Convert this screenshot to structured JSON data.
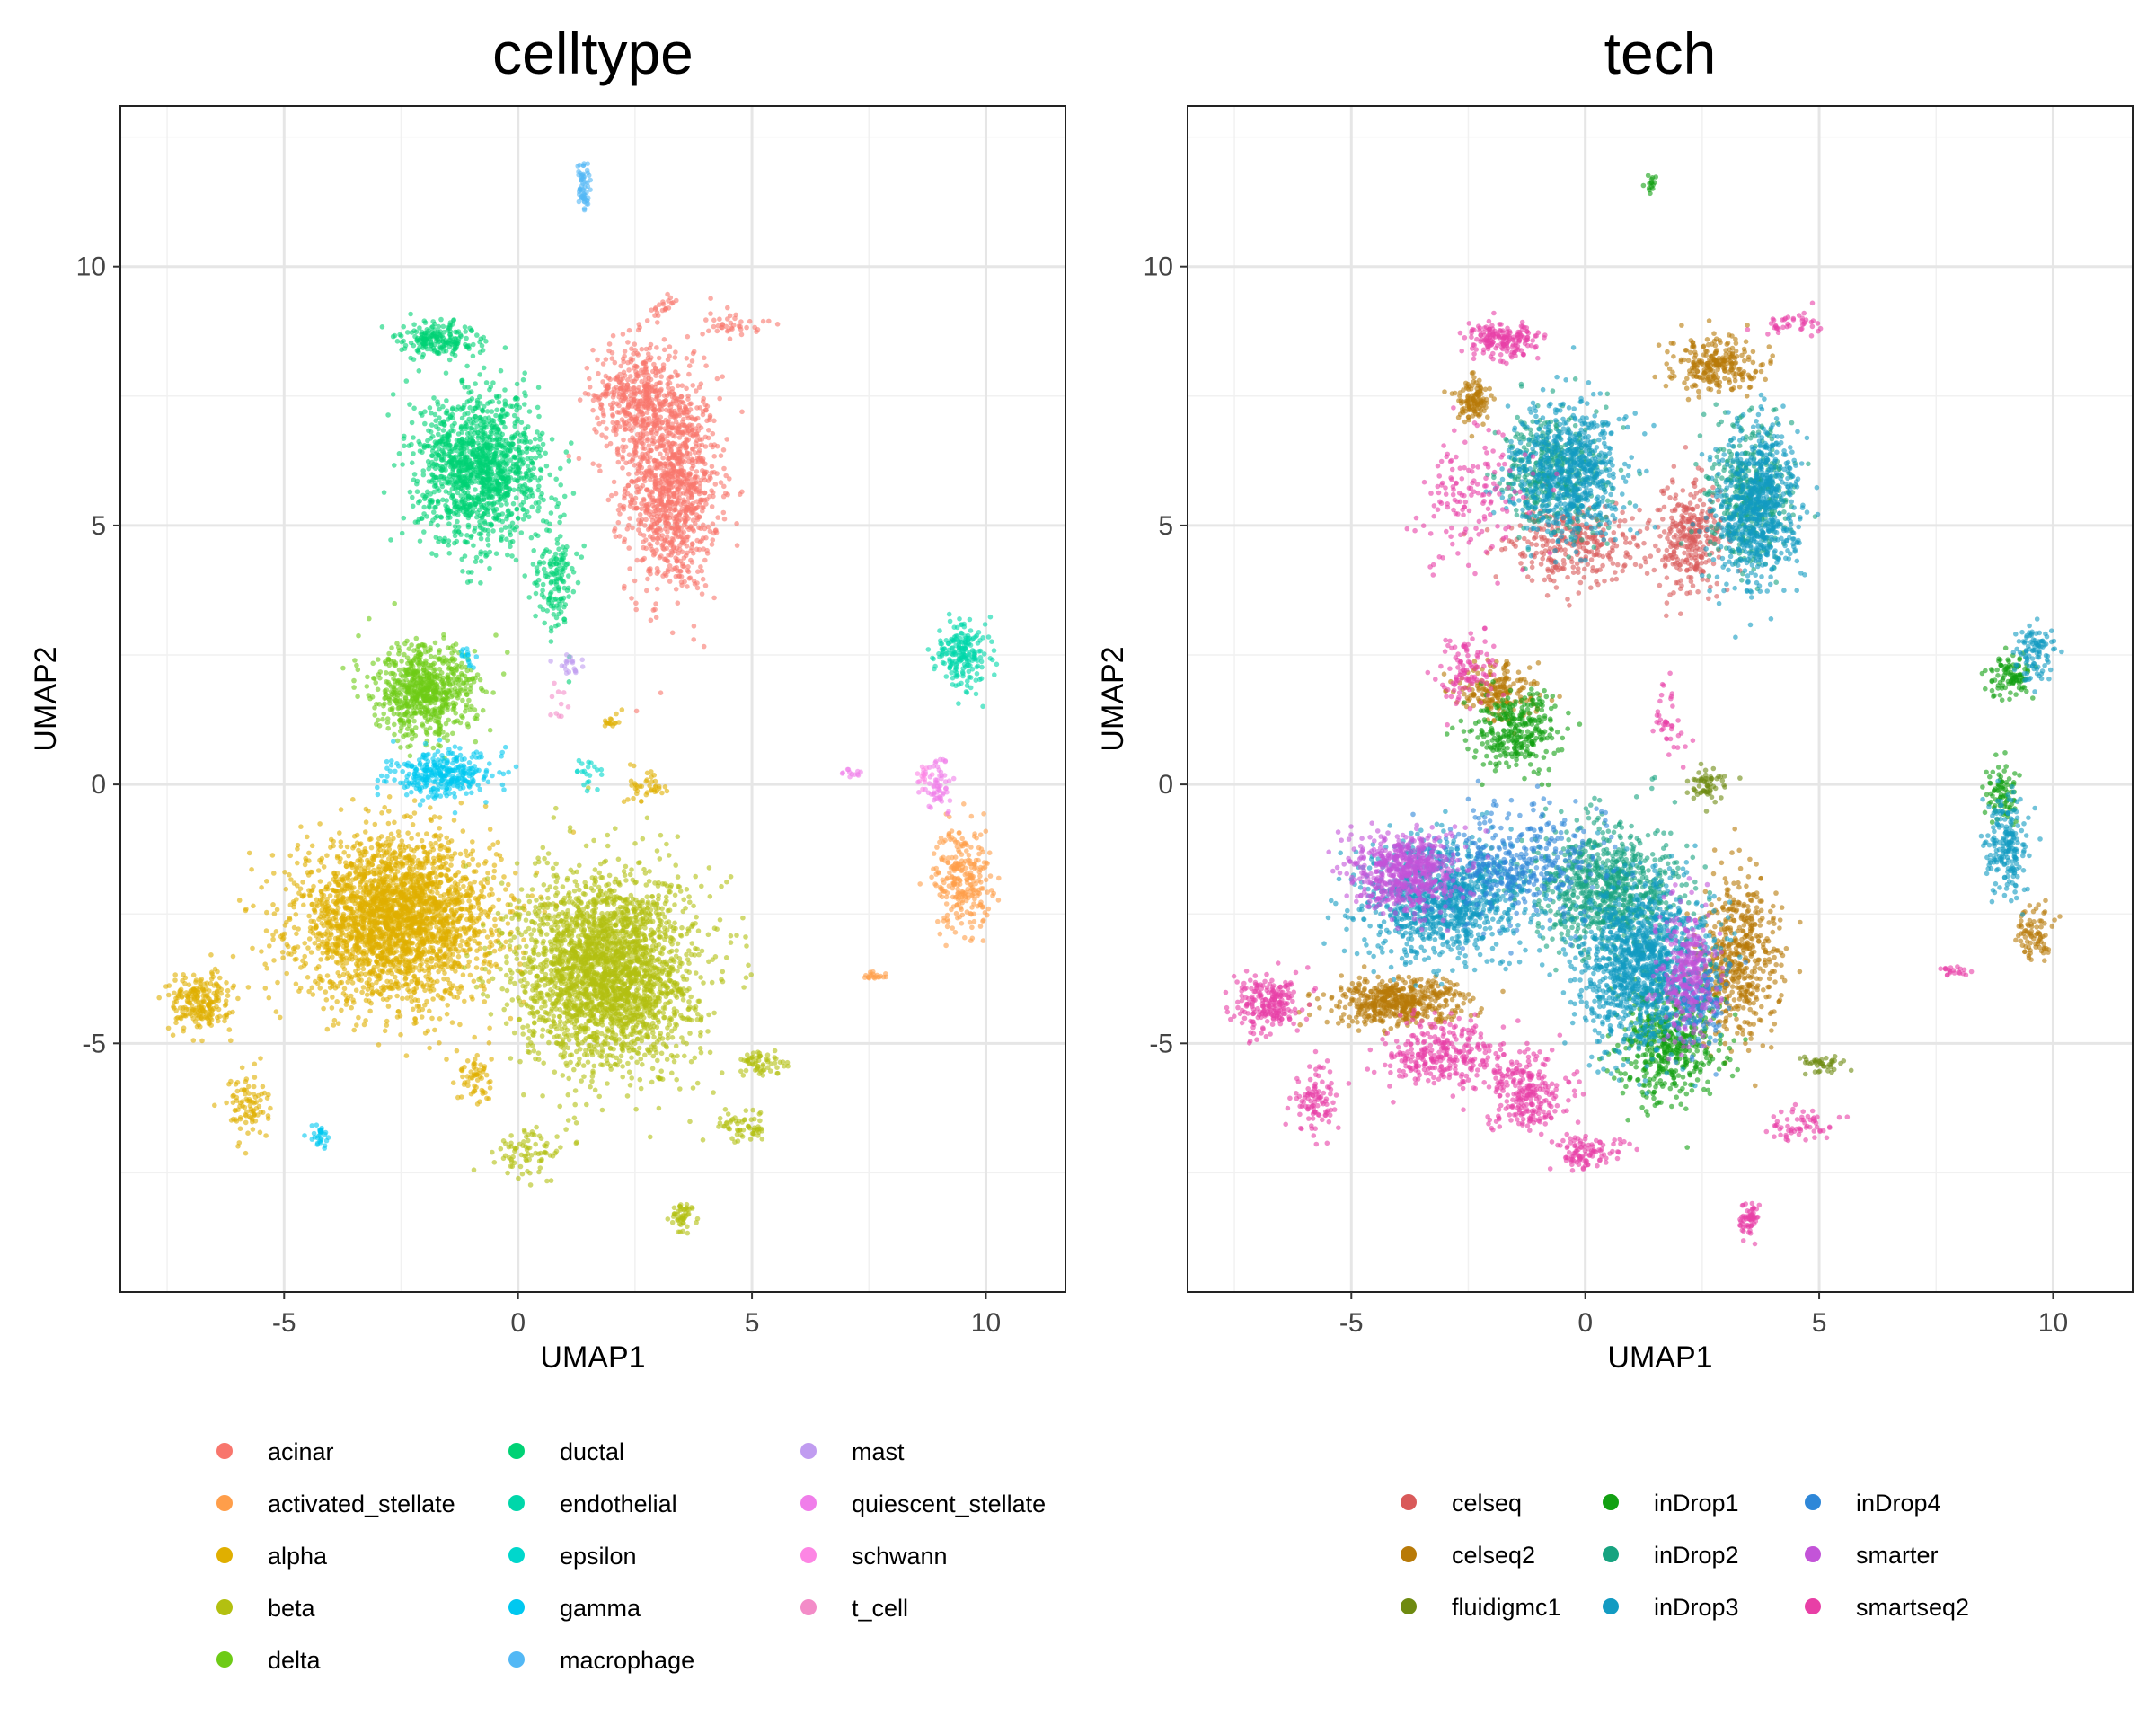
{
  "chart_data": [
    {
      "type": "scatter",
      "title": "celltype",
      "xlabel": "UMAP1",
      "ylabel": "UMAP2",
      "xlim": [
        -8.5,
        11.7
      ],
      "ylim": [
        -9.8,
        13.1
      ],
      "xticks": [
        -5,
        0,
        5,
        10
      ],
      "yticks": [
        -5,
        0,
        5,
        10
      ],
      "grid": true,
      "legend_position": "bottom",
      "series": [
        {
          "name": "acinar",
          "color": "#F8766D",
          "clusters": [
            [
              3.3,
              5.8,
              0.9,
              1.9,
              1100
            ],
            [
              2.5,
              7.5,
              0.8,
              1.0,
              400
            ],
            [
              4.6,
              8.9,
              0.6,
              0.25,
              40
            ],
            [
              3.1,
              9.2,
              0.3,
              0.2,
              20
            ]
          ]
        },
        {
          "name": "activated_stellate",
          "color": "#FF9E4A",
          "clusters": [
            [
              9.5,
              -1.8,
              0.55,
              0.9,
              260
            ],
            [
              7.6,
              -3.7,
              0.3,
              0.1,
              20
            ]
          ]
        },
        {
          "name": "alpha",
          "color": "#E0AF00",
          "clusters": [
            [
              -2.6,
              -2.6,
              1.9,
              1.4,
              2600
            ],
            [
              -6.8,
              -4.2,
              0.6,
              0.5,
              220
            ],
            [
              -5.8,
              -6.2,
              0.4,
              0.6,
              90
            ],
            [
              -0.9,
              -5.7,
              0.3,
              0.5,
              60
            ],
            [
              2.8,
              0.0,
              0.4,
              0.3,
              40
            ],
            [
              2.0,
              1.2,
              0.2,
              0.2,
              15
            ]
          ]
        },
        {
          "name": "beta",
          "color": "#B3C010",
          "clusters": [
            [
              1.9,
              -3.6,
              1.7,
              1.7,
              2600
            ],
            [
              5.2,
              -5.4,
              0.6,
              0.2,
              60
            ],
            [
              4.8,
              -6.6,
              0.5,
              0.3,
              60
            ],
            [
              0.3,
              -7.1,
              0.7,
              0.4,
              80
            ],
            [
              3.5,
              -8.4,
              0.2,
              0.3,
              50
            ]
          ]
        },
        {
          "name": "delta",
          "color": "#6ECB16",
          "clusters": [
            [
              -2.0,
              1.8,
              1.0,
              0.8,
              700
            ]
          ]
        },
        {
          "name": "ductal",
          "color": "#00D275",
          "clusters": [
            [
              -0.8,
              6.1,
              1.2,
              1.3,
              1300
            ],
            [
              -1.7,
              8.6,
              0.7,
              0.3,
              200
            ],
            [
              0.8,
              4.0,
              0.4,
              1.0,
              150
            ]
          ]
        },
        {
          "name": "endothelial",
          "color": "#00D7AA",
          "clusters": [
            [
              9.5,
              2.5,
              0.5,
              0.6,
              200
            ]
          ]
        },
        {
          "name": "epsilon",
          "color": "#00D7CC",
          "clusters": [
            [
              1.5,
              0.2,
              0.3,
              0.3,
              20
            ]
          ]
        },
        {
          "name": "gamma",
          "color": "#00C8F0",
          "clusters": [
            [
              -1.6,
              0.2,
              1.0,
              0.4,
              320
            ],
            [
              -4.3,
              -6.8,
              0.2,
              0.2,
              30
            ],
            [
              -1.1,
              2.5,
              0.15,
              0.2,
              15
            ]
          ]
        },
        {
          "name": "macrophage",
          "color": "#53B8F5",
          "clusters": [
            [
              1.4,
              11.5,
              0.12,
              0.4,
              60
            ]
          ]
        },
        {
          "name": "mast",
          "color": "#C09CF0",
          "clusters": [
            [
              1.1,
              2.3,
              0.25,
              0.2,
              20
            ]
          ]
        },
        {
          "name": "quiescent_stellate",
          "color": "#F07EEA",
          "clusters": [
            [
              9.0,
              0.0,
              0.35,
              0.5,
              60
            ],
            [
              7.2,
              0.2,
              0.2,
              0.1,
              12
            ]
          ]
        },
        {
          "name": "schwann",
          "color": "#FD86E4",
          "clusters": [
            [
              8.7,
              0.2,
              0.2,
              0.2,
              15
            ]
          ]
        },
        {
          "name": "t_cell",
          "color": "#F38CC8",
          "clusters": [
            [
              0.9,
              1.5,
              0.3,
              0.3,
              10
            ]
          ]
        }
      ]
    },
    {
      "type": "scatter",
      "title": "tech",
      "xlabel": "UMAP1",
      "ylabel": "UMAP2",
      "xlim": [
        -8.5,
        11.7
      ],
      "ylim": [
        -9.8,
        13.1
      ],
      "xticks": [
        -5,
        0,
        5,
        10
      ],
      "yticks": [
        -5,
        0,
        5,
        10
      ],
      "grid": true,
      "legend_position": "bottom",
      "series": [
        {
          "name": "celseq",
          "color": "#D95A5A",
          "clusters": [
            [
              -0.3,
              4.6,
              1.3,
              0.7,
              300
            ],
            [
              2.2,
              4.8,
              0.7,
              1.0,
              300
            ]
          ]
        },
        {
          "name": "celseq2",
          "color": "#B87A08",
          "clusters": [
            [
              -2.4,
              7.4,
              0.4,
              0.4,
              120
            ],
            [
              2.8,
              8.1,
              0.8,
              0.5,
              250
            ],
            [
              3.3,
              -3.4,
              0.8,
              1.4,
              500
            ],
            [
              -4.0,
              -4.2,
              1.3,
              0.4,
              500
            ],
            [
              9.6,
              -2.8,
              0.4,
              0.5,
              80
            ],
            [
              -1.9,
              1.8,
              0.8,
              0.5,
              200
            ]
          ]
        },
        {
          "name": "fluidigmc1",
          "color": "#6E8A10",
          "clusters": [
            [
              2.6,
              0.0,
              0.35,
              0.3,
              60
            ],
            [
              5.1,
              -5.4,
              0.5,
              0.15,
              40
            ]
          ]
        },
        {
          "name": "inDrop1",
          "color": "#12A012",
          "clusters": [
            [
              1.8,
              -5.0,
              1.0,
              1.1,
              500
            ],
            [
              9.1,
              2.1,
              0.4,
              0.4,
              100
            ],
            [
              8.9,
              -0.2,
              0.3,
              0.5,
              80
            ],
            [
              -1.5,
              1.0,
              0.9,
              0.7,
              300
            ],
            [
              1.4,
              11.6,
              0.12,
              0.3,
              15
            ]
          ]
        },
        {
          "name": "inDrop2",
          "color": "#17A380",
          "clusters": [
            [
              -0.7,
              6.0,
              1.0,
              1.1,
              400
            ],
            [
              3.5,
              5.6,
              0.8,
              1.3,
              400
            ],
            [
              0.4,
              -2.0,
              1.4,
              1.1,
              800
            ]
          ]
        },
        {
          "name": "inDrop3",
          "color": "#139BC2",
          "clusters": [
            [
              -0.4,
              6.0,
              1.1,
              1.2,
              700
            ],
            [
              3.7,
              5.4,
              0.8,
              1.4,
              700
            ],
            [
              1.2,
              -3.5,
              1.3,
              1.4,
              1200
            ],
            [
              -3.0,
              -2.2,
              1.6,
              1.0,
              1000
            ],
            [
              9.0,
              -1.2,
              0.4,
              0.9,
              200
            ],
            [
              9.6,
              2.6,
              0.4,
              0.5,
              100
            ]
          ]
        },
        {
          "name": "inDrop4",
          "color": "#2E87D8",
          "clusters": [
            [
              -1.5,
              -1.5,
              1.7,
              1.0,
              400
            ],
            [
              2.4,
              -4.2,
              0.6,
              0.8,
              150
            ]
          ]
        },
        {
          "name": "smarter",
          "color": "#C354D8",
          "clusters": [
            [
              -3.8,
              -1.7,
              1.1,
              0.7,
              600
            ],
            [
              2.2,
              -3.6,
              0.6,
              1.1,
              300
            ]
          ]
        },
        {
          "name": "smartseq2",
          "color": "#E83FA6",
          "clusters": [
            [
              -1.8,
              8.6,
              0.7,
              0.3,
              180
            ],
            [
              -2.5,
              5.5,
              1.1,
              1.1,
              150
            ],
            [
              4.5,
              8.9,
              0.6,
              0.25,
              40
            ],
            [
              -6.8,
              -4.2,
              0.6,
              0.5,
              220
            ],
            [
              -5.8,
              -6.2,
              0.4,
              0.6,
              100
            ],
            [
              -1.2,
              -6.0,
              0.8,
              0.7,
              250
            ],
            [
              0.1,
              -7.1,
              0.6,
              0.3,
              100
            ],
            [
              3.5,
              -8.4,
              0.2,
              0.3,
              60
            ],
            [
              4.6,
              -6.6,
              0.6,
              0.3,
              60
            ],
            [
              -2.6,
              2.2,
              0.5,
              0.6,
              100
            ],
            [
              -3.0,
              -5.2,
              1.2,
              0.6,
              300
            ],
            [
              7.8,
              -3.6,
              0.3,
              0.1,
              20
            ],
            [
              1.8,
              1.2,
              0.3,
              0.6,
              40
            ]
          ]
        }
      ]
    }
  ]
}
